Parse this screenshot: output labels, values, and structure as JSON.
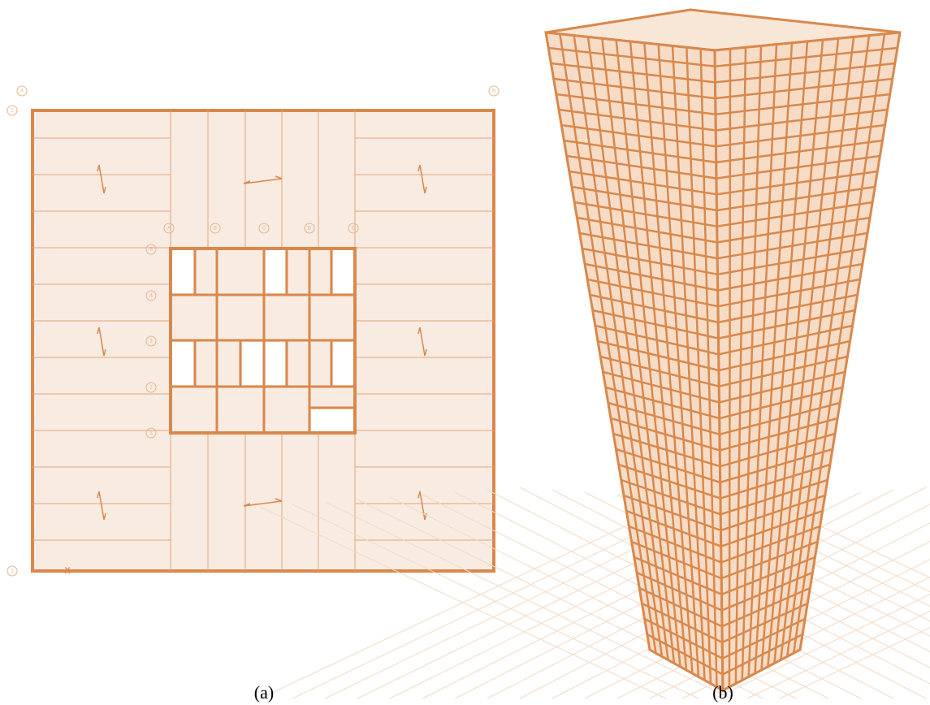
{
  "plan": {
    "grid_bubbles": {
      "top": [
        "A",
        "B"
      ],
      "left": [
        "2",
        "1"
      ]
    },
    "core_bubbles": {
      "top": [
        "A",
        "B",
        "C",
        "D",
        "E"
      ],
      "left": [
        "5",
        "4",
        "3",
        "2",
        "1"
      ]
    },
    "axis_label": "X"
  },
  "captions": [
    "(a)",
    "(b)"
  ]
}
